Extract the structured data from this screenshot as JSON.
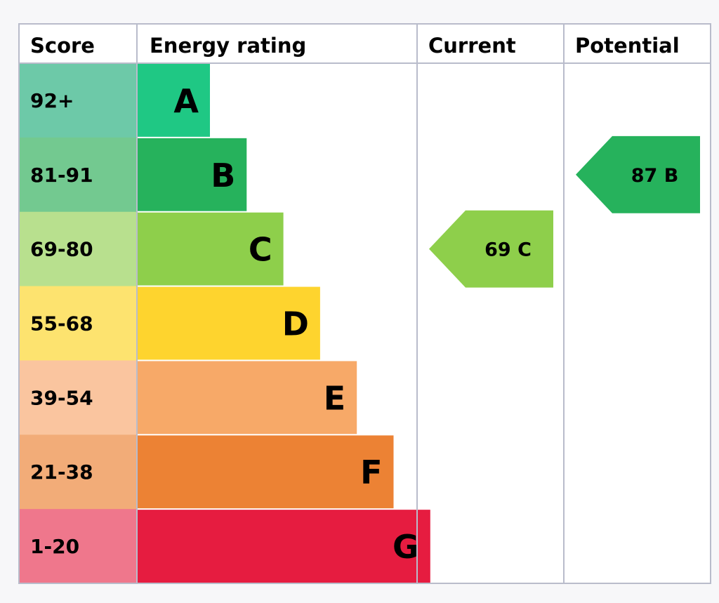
{
  "headers": {
    "score": "Score",
    "energy_rating": "Energy rating",
    "current": "Current",
    "potential": "Potential"
  },
  "colors": {
    "background": "#f7f7f9",
    "table_background": "#ffffff",
    "grid": "#b9bccb"
  },
  "chart_data": {
    "type": "table",
    "bands": [
      {
        "score": "92+",
        "letter": "A",
        "color": "#1fc884",
        "score_bg": "#6dc9a8"
      },
      {
        "score": "81-91",
        "letter": "B",
        "color": "#26b25c",
        "score_bg": "#73c990"
      },
      {
        "score": "69-80",
        "letter": "C",
        "color": "#8ecf4b",
        "score_bg": "#b8e08e"
      },
      {
        "score": "55-68",
        "letter": "D",
        "color": "#fed42e",
        "score_bg": "#fde36f"
      },
      {
        "score": "39-54",
        "letter": "E",
        "color": "#f7a968",
        "score_bg": "#fac59f"
      },
      {
        "score": "21-38",
        "letter": "F",
        "color": "#ec8234",
        "score_bg": "#f2ac78"
      },
      {
        "score": "1-20",
        "letter": "G",
        "color": "#e61c40",
        "score_bg": "#ef778c"
      }
    ],
    "current": {
      "value": 69,
      "band": "C",
      "label": "69 C",
      "color": "#8ecf4b"
    },
    "potential": {
      "value": 87,
      "band": "B",
      "label": "87 B",
      "color": "#26b25c"
    }
  }
}
